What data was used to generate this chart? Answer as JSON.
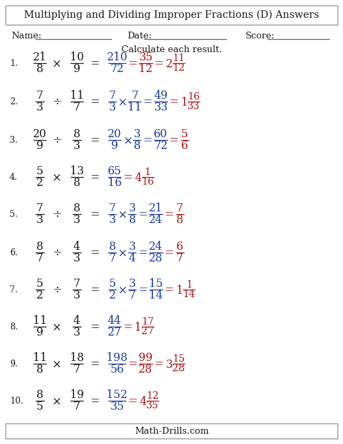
{
  "title": "Multiplying and Dividing Improper Fractions (D) Answers",
  "instructions": "Calculate each result.",
  "name_label": "Name:",
  "date_label": "Date:",
  "score_label": "Score:",
  "footer": "Math-Drills.com",
  "bg_color": "#ffffff",
  "border_color": "#999999",
  "text_color_dark": "#1a1a1a",
  "text_color_blue": "#1a3a99",
  "text_color_red": "#aa1111",
  "problems": [
    {
      "num": "1.",
      "op": "×",
      "q_num1": "21",
      "q_den1": "8",
      "q_num2": "10",
      "q_den2": "9",
      "show_reciprocal": false,
      "r_num1": "",
      "r_den1": "",
      "r_num2": "",
      "r_den2": "",
      "ans_num": "210",
      "ans_den": "72",
      "simp_num": "35",
      "simp_den": "12",
      "mixed_whole": "2",
      "mixed_num": "11",
      "mixed_den": "12"
    },
    {
      "num": "2.",
      "op": "÷",
      "q_num1": "7",
      "q_den1": "3",
      "q_num2": "11",
      "q_den2": "7",
      "show_reciprocal": true,
      "r_num1": "7",
      "r_den1": "3",
      "r_num2": "7",
      "r_den2": "11",
      "ans_num": "49",
      "ans_den": "33",
      "simp_num": "",
      "simp_den": "",
      "mixed_whole": "1",
      "mixed_num": "16",
      "mixed_den": "33"
    },
    {
      "num": "3.",
      "op": "÷",
      "q_num1": "20",
      "q_den1": "9",
      "q_num2": "8",
      "q_den2": "3",
      "show_reciprocal": true,
      "r_num1": "20",
      "r_den1": "9",
      "r_num2": "3",
      "r_den2": "8",
      "ans_num": "60",
      "ans_den": "72",
      "simp_num": "5",
      "simp_den": "6",
      "mixed_whole": "",
      "mixed_num": "",
      "mixed_den": ""
    },
    {
      "num": "4.",
      "op": "×",
      "q_num1": "5",
      "q_den1": "2",
      "q_num2": "13",
      "q_den2": "8",
      "show_reciprocal": false,
      "r_num1": "",
      "r_den1": "",
      "r_num2": "",
      "r_den2": "",
      "ans_num": "65",
      "ans_den": "16",
      "simp_num": "",
      "simp_den": "",
      "mixed_whole": "4",
      "mixed_num": "1",
      "mixed_den": "16"
    },
    {
      "num": "5.",
      "op": "÷",
      "q_num1": "7",
      "q_den1": "3",
      "q_num2": "8",
      "q_den2": "3",
      "show_reciprocal": true,
      "r_num1": "7",
      "r_den1": "3",
      "r_num2": "3",
      "r_den2": "8",
      "ans_num": "21",
      "ans_den": "24",
      "simp_num": "7",
      "simp_den": "8",
      "mixed_whole": "",
      "mixed_num": "",
      "mixed_den": ""
    },
    {
      "num": "6.",
      "op": "÷",
      "q_num1": "8",
      "q_den1": "7",
      "q_num2": "4",
      "q_den2": "3",
      "show_reciprocal": true,
      "r_num1": "8",
      "r_den1": "7",
      "r_num2": "3",
      "r_den2": "4",
      "ans_num": "24",
      "ans_den": "28",
      "simp_num": "6",
      "simp_den": "7",
      "mixed_whole": "",
      "mixed_num": "",
      "mixed_den": ""
    },
    {
      "num": "7.",
      "op": "÷",
      "q_num1": "5",
      "q_den1": "2",
      "q_num2": "7",
      "q_den2": "3",
      "show_reciprocal": true,
      "r_num1": "5",
      "r_den1": "2",
      "r_num2": "3",
      "r_den2": "7",
      "ans_num": "15",
      "ans_den": "14",
      "simp_num": "",
      "simp_den": "",
      "mixed_whole": "1",
      "mixed_num": "1",
      "mixed_den": "14"
    },
    {
      "num": "8.",
      "op": "×",
      "q_num1": "11",
      "q_den1": "9",
      "q_num2": "4",
      "q_den2": "3",
      "show_reciprocal": false,
      "r_num1": "",
      "r_den1": "",
      "r_num2": "",
      "r_den2": "",
      "ans_num": "44",
      "ans_den": "27",
      "simp_num": "",
      "simp_den": "",
      "mixed_whole": "1",
      "mixed_num": "17",
      "mixed_den": "27"
    },
    {
      "num": "9.",
      "op": "×",
      "q_num1": "11",
      "q_den1": "8",
      "q_num2": "18",
      "q_den2": "7",
      "show_reciprocal": false,
      "r_num1": "",
      "r_den1": "",
      "r_num2": "",
      "r_den2": "",
      "ans_num": "198",
      "ans_den": "56",
      "simp_num": "99",
      "simp_den": "28",
      "mixed_whole": "3",
      "mixed_num": "15",
      "mixed_den": "28"
    },
    {
      "num": "10.",
      "op": "×",
      "q_num1": "8",
      "q_den1": "5",
      "q_num2": "19",
      "q_den2": "7",
      "show_reciprocal": false,
      "r_num1": "",
      "r_den1": "",
      "r_num2": "",
      "r_den2": "",
      "ans_num": "152",
      "ans_den": "35",
      "simp_num": "",
      "simp_den": "",
      "mixed_whole": "4",
      "mixed_num": "12",
      "mixed_den": "35"
    }
  ]
}
